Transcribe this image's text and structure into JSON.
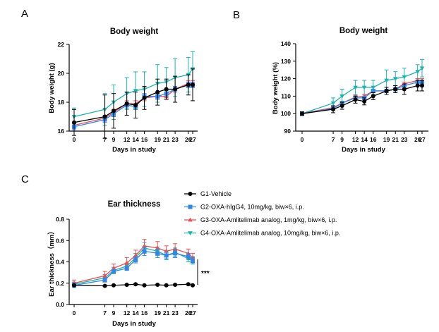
{
  "panels": {
    "a": "A",
    "b": "B",
    "c": "C"
  },
  "colors": {
    "G1": "#000000",
    "G2": "#2f87e8",
    "G3": "#ef4e4e",
    "G4": "#1db4ad"
  },
  "series_meta": [
    {
      "key": "G1",
      "name": "G1-Vehicle",
      "marker": "circle"
    },
    {
      "key": "G2",
      "name": "G2-OXA-hIgG4, 10mg/kg, biw×6, i.p.",
      "marker": "square"
    },
    {
      "key": "G3",
      "name": "G3-OXA-Amlitelimab analog, 1mg/kg, biw×6, i.p.",
      "marker": "triangle-up"
    },
    {
      "key": "G4",
      "name": "G4-OXA-Amlitelimab analog, 10mg/kg, biw×6, i.p.",
      "marker": "triangle-down"
    }
  ],
  "significance": "***",
  "chart_data": [
    {
      "type": "line",
      "title": "Body weight",
      "xlabel": "Days in study",
      "ylabel": "Body weight (g)",
      "x": [
        0,
        7,
        9,
        12,
        14,
        16,
        19,
        21,
        23,
        26,
        27
      ],
      "xticks": [
        "0",
        "7",
        "9",
        "12",
        "14",
        "16",
        "19",
        "21",
        "23",
        "26",
        "27"
      ],
      "ylim": [
        16,
        22
      ],
      "yticks": [
        16,
        18,
        20,
        22
      ],
      "series": [
        {
          "name": "G1-Vehicle",
          "values": [
            16.6,
            17.0,
            17.4,
            17.9,
            17.8,
            18.3,
            18.7,
            18.9,
            18.9,
            19.2,
            19.2
          ],
          "errors": [
            0.9,
            1.5,
            1.2,
            0.8,
            0.9,
            0.8,
            0.9,
            0.7,
            0.9,
            0.7,
            1.1
          ]
        },
        {
          "name": "G2-OXA-hIgG4, 10mg/kg, biw×6, i.p.",
          "values": [
            16.3,
            16.8,
            17.2,
            17.8,
            17.7,
            18.4,
            18.4,
            18.6,
            18.9,
            19.2,
            19.2
          ],
          "errors": [
            0.2,
            0.2,
            0.2,
            0.2,
            0.2,
            0.2,
            0.2,
            0.2,
            0.2,
            0.2,
            0.2
          ]
        },
        {
          "name": "G3-OXA-Amlitelimab analog, 1mg/kg, biw×6, i.p.",
          "values": [
            16.4,
            16.9,
            17.3,
            17.9,
            17.9,
            18.3,
            18.4,
            18.4,
            18.9,
            19.3,
            19.3
          ],
          "errors": [
            0.2,
            0.2,
            0.2,
            0.2,
            0.2,
            0.2,
            0.2,
            0.2,
            0.2,
            0.2,
            0.2
          ]
        },
        {
          "name": "G4-OXA-Amlitelimab analog, 10mg/kg, biw×6, i.p.",
          "values": [
            17.0,
            17.5,
            18.0,
            18.6,
            18.8,
            18.9,
            19.3,
            19.4,
            19.7,
            19.9,
            20.3
          ],
          "errors": [
            0.6,
            1.1,
            1.2,
            1.1,
            1.3,
            1.2,
            1.3,
            1.0,
            1.3,
            1.2,
            1.2
          ]
        }
      ]
    },
    {
      "type": "line",
      "title": "Body weight",
      "xlabel": "Days in study",
      "ylabel": "Body weight (%)",
      "x": [
        0,
        7,
        9,
        12,
        14,
        16,
        19,
        21,
        23,
        26,
        27
      ],
      "xticks": [
        "0",
        "7",
        "9",
        "12",
        "14",
        "16",
        "19",
        "21",
        "23",
        "26",
        "27"
      ],
      "ylim": [
        90,
        140
      ],
      "yticks": [
        90,
        100,
        110,
        120,
        130,
        140
      ],
      "series": [
        {
          "name": "G1-Vehicle",
          "values": [
            100,
            102.5,
            104.5,
            108,
            107,
            110,
            113,
            114,
            114,
            116,
            116
          ],
          "errors": [
            1,
            2,
            2,
            2,
            2,
            2,
            2,
            2,
            3,
            3,
            3
          ]
        },
        {
          "name": "G2-OXA-hIgG4, 10mg/kg, biw×6, i.p.",
          "values": [
            100,
            103,
            106,
            109,
            109,
            113,
            113,
            114,
            116,
            118,
            118
          ],
          "errors": [
            1,
            1,
            1,
            1,
            1,
            1,
            1,
            1,
            1,
            1,
            1
          ]
        },
        {
          "name": "G3-OXA-Amlitelimab analog, 1mg/kg, biw×6, i.p.",
          "values": [
            100,
            103.5,
            106,
            109.5,
            110,
            113,
            113,
            114,
            117,
            119,
            119
          ],
          "errors": [
            1,
            1,
            1,
            1,
            1,
            1,
            1,
            1,
            1,
            1,
            1
          ]
        },
        {
          "name": "G4-OXA-Amlitelimab analog, 10mg/kg, biw×6, i.p.",
          "values": [
            100,
            106,
            110,
            115,
            115,
            115,
            119,
            120,
            121,
            124,
            126
          ],
          "errors": [
            1,
            3,
            4,
            4,
            4,
            4,
            6,
            4,
            5,
            4,
            5
          ]
        }
      ]
    },
    {
      "type": "line",
      "title": "Ear thickness",
      "xlabel": "Days in study",
      "ylabel": "Ear thickness（mm）",
      "x": [
        0,
        7,
        9,
        12,
        14,
        16,
        19,
        21,
        23,
        26,
        27
      ],
      "xticks": [
        "0",
        "7",
        "9",
        "12",
        "14",
        "16",
        "19",
        "21",
        "23",
        "26",
        "27"
      ],
      "ylim": [
        0.0,
        0.8
      ],
      "yticks": [
        "0.0",
        "0.2",
        "0.4",
        "0.6",
        "0.8"
      ],
      "legend_position": "top-right",
      "series": [
        {
          "name": "G1-Vehicle",
          "values": [
            0.18,
            0.175,
            0.18,
            0.185,
            0.19,
            0.18,
            0.185,
            0.18,
            0.185,
            0.19,
            0.18
          ],
          "errors": [
            0.005,
            0.005,
            0.005,
            0.005,
            0.005,
            0.005,
            0.005,
            0.005,
            0.005,
            0.005,
            0.005
          ]
        },
        {
          "name": "G2-OXA-hIgG4, 10mg/kg, biw×6, i.p.",
          "values": [
            0.18,
            0.23,
            0.31,
            0.34,
            0.42,
            0.5,
            0.48,
            0.46,
            0.48,
            0.45,
            0.41
          ],
          "errors": [
            0.02,
            0.02,
            0.02,
            0.02,
            0.03,
            0.04,
            0.04,
            0.03,
            0.04,
            0.03,
            0.03
          ]
        },
        {
          "name": "G3-OXA-Amlitelimab analog, 1mg/kg, biw×6, i.p.",
          "values": [
            0.2,
            0.27,
            0.34,
            0.39,
            0.46,
            0.55,
            0.53,
            0.5,
            0.52,
            0.48,
            0.44
          ],
          "errors": [
            0.03,
            0.04,
            0.04,
            0.05,
            0.05,
            0.06,
            0.06,
            0.05,
            0.05,
            0.04,
            0.04
          ]
        },
        {
          "name": "G4-OXA-Amlitelimab analog, 10mg/kg, biw×6, i.p.",
          "values": [
            0.19,
            0.25,
            0.32,
            0.36,
            0.44,
            0.53,
            0.5,
            0.46,
            0.49,
            0.43,
            0.42
          ],
          "errors": [
            0.02,
            0.03,
            0.03,
            0.03,
            0.04,
            0.05,
            0.04,
            0.04,
            0.04,
            0.03,
            0.03
          ]
        }
      ]
    }
  ]
}
